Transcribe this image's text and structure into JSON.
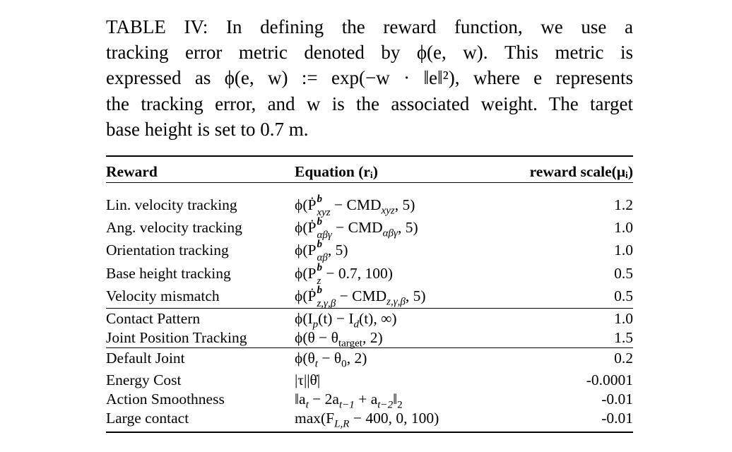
{
  "caption": {
    "lines": [
      "TABLE IV: In defining the reward function, we use a",
      "tracking error metric denoted by ϕ(e, w). This metric is",
      "expressed as ϕ(e, w) := exp(−w · ‖e‖²), where e represents",
      "the tracking error, and w is the associated weight. The target",
      "base height is set to 0.7 m."
    ]
  },
  "table": {
    "headers": {
      "reward": "Reward",
      "equation": "Equation (rᵢ)",
      "scale": "reward scale(μᵢ)"
    },
    "groups": [
      [
        {
          "reward": "Lin. velocity tracking",
          "equation": [
            {
              "t": "ϕ(Ṗ"
            },
            {
              "sup": "b",
              "sub": "xyz"
            },
            {
              "t": " − CMD"
            },
            {
              "sub": "xyz"
            },
            {
              "t": ", 5)"
            }
          ],
          "scale": "1.2"
        },
        {
          "reward": "Ang. velocity tracking",
          "equation": [
            {
              "t": "ϕ(Ṗ"
            },
            {
              "sup": "b",
              "sub": "αβγ"
            },
            {
              "t": " − CMD"
            },
            {
              "sub": "αβγ"
            },
            {
              "t": ", 5)"
            }
          ],
          "scale": "1.0"
        },
        {
          "reward": "Orientation tracking",
          "equation": [
            {
              "t": "ϕ(P"
            },
            {
              "sup": "b",
              "sub": "αβ"
            },
            {
              "t": ", 5)"
            }
          ],
          "scale": "1.0"
        },
        {
          "reward": "Base height tracking",
          "equation": [
            {
              "t": "ϕ(P"
            },
            {
              "sup": "b",
              "sub": "z"
            },
            {
              "t": " − 0.7, 100)"
            }
          ],
          "scale": "0.5"
        },
        {
          "reward": "Velocity mismatch",
          "equation": [
            {
              "t": "ϕ(Ṗ"
            },
            {
              "sup": "b",
              "sub": "z,γ,β"
            },
            {
              "t": " − CMD"
            },
            {
              "sub": "z,γ,β"
            },
            {
              "t": ", 5)"
            }
          ],
          "scale": "0.5"
        }
      ],
      [
        {
          "reward": "Contact Pattern",
          "equation": [
            {
              "t": "ϕ(I"
            },
            {
              "sub": "p"
            },
            {
              "t": "(t) − I"
            },
            {
              "sub": "d"
            },
            {
              "t": "(t), ∞)"
            }
          ],
          "scale": "1.0"
        },
        {
          "reward": "Joint Position Tracking",
          "equation": [
            {
              "t": "ϕ(θ − θ"
            },
            {
              "sub": "target",
              "upright": true
            },
            {
              "t": ", 2)"
            }
          ],
          "scale": "1.5"
        }
      ],
      [
        {
          "reward": "Default Joint",
          "equation": [
            {
              "t": "ϕ(θ"
            },
            {
              "sub": "t"
            },
            {
              "t": " − θ"
            },
            {
              "sub": "0",
              "upright": true
            },
            {
              "t": ", 2)"
            }
          ],
          "scale": "0.2"
        },
        {
          "reward": "Energy Cost",
          "equation": [
            {
              "t": "|τ||θ̇|"
            }
          ],
          "scale": "-0.0001"
        },
        {
          "reward": "Action Smoothness",
          "equation": [
            {
              "t": "‖a"
            },
            {
              "sub": "t"
            },
            {
              "t": " − 2a"
            },
            {
              "sub": "t−1"
            },
            {
              "t": " + a"
            },
            {
              "sub": "t−2"
            },
            {
              "t": "‖"
            },
            {
              "sub": "2",
              "upright": true
            }
          ],
          "scale": "-0.01"
        },
        {
          "reward": "Large contact",
          "equation": [
            {
              "t": "max(F"
            },
            {
              "sub": "L,R"
            },
            {
              "t": " − 400, 0, 100)"
            }
          ],
          "scale": "-0.01"
        }
      ]
    ]
  }
}
